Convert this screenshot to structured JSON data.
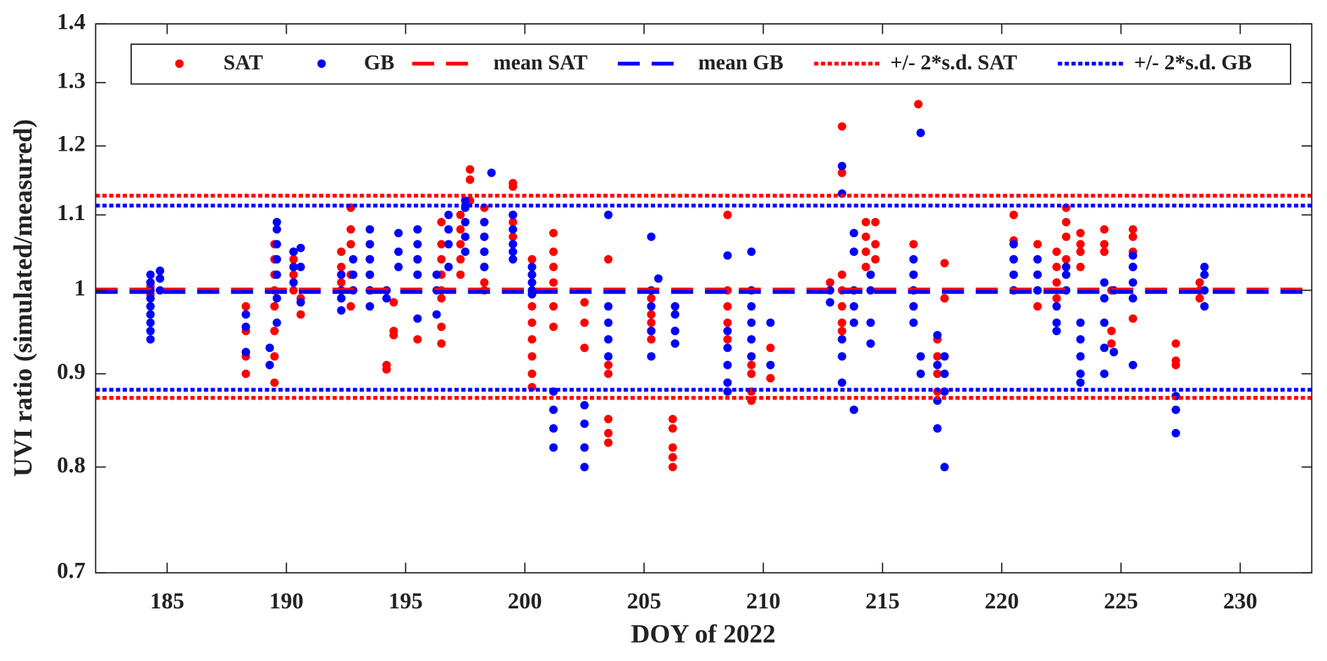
{
  "chart_data": {
    "type": "scatter",
    "xlabel": "DOY of 2022",
    "ylabel": "UVI ratio (simulated/measured)",
    "xlim": [
      182,
      233
    ],
    "xticks": [
      185,
      190,
      195,
      200,
      205,
      210,
      215,
      220,
      225,
      230
    ],
    "ylim": [
      0.7,
      1.4
    ],
    "yticks": [
      0.7,
      0.8,
      0.9,
      1,
      1.1,
      1.2,
      1.3,
      1.4
    ],
    "yscale": "log",
    "grid": false,
    "legend": "top",
    "series": [
      {
        "name": "SAT",
        "color": "#ff0000",
        "style": "marker",
        "x": [
          184.3,
          184.3,
          184.3,
          184.3,
          184.3,
          188.3,
          188.3,
          188.3,
          188.3,
          189.5,
          189.5,
          189.5,
          189.5,
          189.5,
          189.5,
          189.5,
          189.5,
          190.3,
          190.3,
          190.3,
          190.3,
          190.3,
          190.6,
          190.6,
          192.3,
          192.3,
          192.3,
          192.3,
          192.7,
          192.7,
          192.7,
          192.7,
          192.7,
          193.5,
          193.5,
          193.5,
          194.2,
          194.2,
          194.5,
          194.5,
          194.5,
          195.5,
          195.5,
          195.5,
          196.5,
          196.5,
          196.5,
          196.5,
          196.5,
          196.5,
          196.5,
          196.5,
          197.3,
          197.3,
          197.3,
          197.3,
          197.3,
          197.7,
          197.7,
          197.7,
          198.3,
          198.3,
          198.3,
          198.3,
          198.3,
          198.3,
          198.3,
          199.5,
          199.5,
          199.5,
          199.5,
          199.5,
          200.3,
          200.3,
          200.3,
          200.3,
          200.3,
          200.3,
          200.3,
          200.3,
          200.3,
          201.2,
          201.2,
          201.2,
          201.2,
          201.2,
          201.2,
          202.5,
          202.5,
          202.5,
          203.5,
          203.5,
          203.5,
          203.5,
          203.5,
          203.5,
          205.3,
          205.3,
          205.3,
          205.3,
          205.3,
          206.2,
          206.2,
          206.2,
          206.2,
          206.2,
          208.5,
          208.5,
          208.5,
          208.5,
          208.5,
          209.5,
          209.5,
          209.5,
          209.5,
          209.5,
          210.3,
          210.3,
          212.8,
          213.3,
          213.3,
          213.3,
          213.3,
          213.3,
          213.3,
          213.3,
          214.3,
          214.3,
          214.3,
          214.3,
          214.7,
          214.7,
          214.7,
          216.3,
          216.3,
          216.3,
          216.3,
          216.5,
          217.3,
          217.3,
          217.3,
          217.3,
          217.6,
          217.6,
          220.5,
          220.5,
          220.5,
          220.5,
          220.5,
          221.5,
          221.5,
          221.5,
          221.5,
          222.3,
          222.3,
          222.3,
          222.3,
          222.7,
          222.7,
          222.7,
          222.7,
          223.3,
          223.3,
          223.3,
          223.3,
          224.3,
          224.3,
          224.3,
          224.6,
          224.6,
          224.6,
          225.5,
          225.5,
          225.5,
          225.5,
          225.5,
          227.3,
          227.3,
          227.3,
          228.3,
          228.3,
          228.3
        ],
        "values": [
          0.99,
          1.0,
          1.01,
          0.995,
          1.005,
          0.98,
          0.95,
          0.92,
          0.9,
          0.89,
          0.92,
          0.95,
          0.98,
          1.0,
          1.02,
          1.04,
          1.06,
          1.0,
          1.02,
          1.04,
          1.05,
          1.03,
          0.97,
          0.99,
          0.99,
          1.01,
          1.03,
          1.05,
          1.02,
          1.06,
          1.08,
          1.11,
          0.98,
          1.0,
          1.02,
          1.04,
          0.91,
          0.905,
          0.95,
          0.945,
          0.985,
          0.94,
          1.02,
          1.04,
          0.935,
          0.955,
          0.99,
          1.0,
          1.02,
          1.04,
          1.06,
          1.09,
          1.02,
          1.04,
          1.06,
          1.08,
          1.1,
          1.12,
          1.15,
          1.165,
          1.0,
          1.01,
          1.03,
          1.05,
          1.07,
          1.09,
          1.11,
          1.07,
          1.09,
          1.1,
          1.14,
          1.145,
          0.885,
          0.9,
          0.92,
          0.94,
          0.96,
          0.98,
          1.0,
          1.02,
          1.04,
          1.075,
          1.05,
          1.03,
          1.01,
          0.98,
          0.955,
          0.985,
          0.96,
          0.93,
          0.825,
          0.835,
          0.85,
          0.9,
          0.91,
          1.04,
          0.94,
          0.95,
          0.96,
          0.97,
          0.99,
          0.8,
          0.81,
          0.82,
          0.84,
          0.85,
          0.94,
          0.96,
          0.98,
          1.0,
          1.1,
          0.87,
          0.88,
          0.9,
          0.91,
          0.92,
          0.895,
          0.93,
          1.01,
          1.23,
          1.16,
          1.02,
          1.0,
          0.98,
          0.96,
          0.95,
          1.09,
          1.07,
          1.05,
          1.03,
          1.09,
          1.06,
          1.04,
          1.0,
          0.98,
          1.02,
          1.06,
          1.265,
          0.88,
          0.9,
          0.92,
          0.94,
          1.035,
          0.99,
          1.0,
          1.02,
          1.04,
          1.065,
          1.1,
          0.98,
          1.0,
          1.02,
          1.06,
          0.99,
          1.01,
          1.03,
          1.05,
          1.11,
          1.09,
          1.07,
          1.04,
          1.03,
          1.05,
          1.06,
          1.075,
          1.08,
          1.06,
          1.05,
          1.0,
          0.95,
          0.935,
          1.08,
          1.07,
          1.05,
          1.03,
          0.965,
          0.935,
          0.915,
          0.91,
          0.99,
          1.0,
          1.01
        ]
      },
      {
        "name": "GB",
        "color": "#0000ff",
        "style": "marker",
        "x": [
          184.3,
          184.3,
          184.3,
          184.3,
          184.3,
          184.3,
          184.3,
          184.3,
          184.3,
          184.7,
          184.7,
          184.7,
          188.3,
          188.3,
          188.3,
          189.3,
          189.3,
          189.6,
          189.6,
          189.6,
          189.6,
          189.6,
          189.6,
          189.6,
          190.3,
          190.3,
          190.3,
          190.6,
          190.6,
          190.6,
          192.3,
          192.3,
          192.3,
          192.3,
          192.8,
          192.8,
          192.8,
          193.5,
          193.5,
          193.5,
          193.5,
          193.5,
          193.5,
          194.2,
          194.2,
          194.7,
          194.7,
          194.7,
          195.5,
          195.5,
          195.5,
          195.5,
          195.5,
          196.3,
          196.3,
          196.3,
          196.8,
          196.8,
          196.8,
          196.8,
          197.5,
          197.5,
          197.5,
          197.5,
          197.5,
          198.3,
          198.3,
          198.3,
          198.3,
          198.6,
          199.5,
          199.5,
          199.5,
          199.5,
          199.5,
          200.3,
          200.3,
          200.3,
          200.3,
          200.3,
          201.2,
          201.2,
          201.2,
          201.2,
          202.5,
          202.5,
          202.5,
          202.5,
          203.5,
          203.5,
          203.5,
          203.5,
          203.5,
          205.3,
          205.3,
          205.3,
          205.3,
          205.3,
          205.6,
          206.3,
          206.3,
          206.3,
          206.3,
          208.5,
          208.5,
          208.5,
          208.5,
          208.5,
          208.5,
          209.5,
          209.5,
          209.5,
          209.5,
          209.5,
          209.5,
          210.3,
          210.3,
          212.8,
          212.8,
          213.3,
          213.3,
          213.3,
          213.3,
          213.3,
          213.8,
          213.8,
          213.8,
          213.8,
          213.8,
          213.8,
          214.5,
          214.5,
          214.5,
          214.5,
          216.3,
          216.3,
          216.3,
          216.3,
          216.3,
          216.6,
          216.6,
          216.6,
          217.3,
          217.3,
          217.3,
          217.3,
          217.6,
          217.6,
          217.6,
          217.6,
          220.5,
          220.5,
          220.5,
          220.5,
          221.5,
          221.5,
          221.5,
          222.3,
          222.3,
          222.3,
          222.7,
          222.7,
          222.7,
          223.3,
          223.3,
          223.3,
          223.3,
          223.3,
          224.3,
          224.3,
          224.3,
          224.3,
          224.3,
          224.7,
          224.7,
          225.5,
          225.5,
          225.5,
          225.5,
          225.5,
          227.3,
          227.3,
          227.3,
          228.5,
          228.5,
          228.5,
          228.5
        ],
        "values": [
          0.94,
          0.95,
          0.96,
          0.97,
          0.98,
          0.99,
          1.0,
          1.01,
          1.02,
          1.0,
          1.015,
          1.025,
          0.97,
          0.955,
          0.925,
          0.93,
          0.91,
          0.96,
          0.99,
          1.02,
          1.04,
          1.06,
          1.08,
          1.09,
          1.01,
          1.03,
          1.05,
          0.985,
          1.03,
          1.055,
          0.975,
          0.99,
          1.0,
          1.02,
          1.0,
          1.02,
          1.04,
          0.98,
          1.0,
          1.02,
          1.04,
          1.06,
          1.08,
          0.99,
          1.0,
          1.03,
          1.05,
          1.075,
          0.965,
          1.02,
          1.04,
          1.06,
          1.08,
          0.97,
          1.0,
          1.02,
          1.03,
          1.06,
          1.08,
          1.1,
          1.05,
          1.07,
          1.09,
          1.11,
          1.12,
          1.03,
          1.05,
          1.07,
          1.09,
          1.16,
          1.04,
          1.05,
          1.06,
          1.08,
          1.1,
          0.995,
          1.0,
          1.01,
          1.02,
          1.03,
          0.82,
          0.84,
          0.86,
          0.88,
          0.8,
          0.82,
          0.845,
          0.865,
          0.92,
          0.94,
          0.96,
          0.98,
          1.1,
          0.92,
          0.95,
          0.98,
          1.0,
          1.07,
          1.015,
          0.935,
          0.95,
          0.97,
          0.98,
          0.88,
          0.89,
          0.91,
          0.93,
          0.95,
          1.045,
          0.92,
          0.94,
          0.96,
          0.98,
          1.0,
          1.05,
          0.91,
          0.96,
          0.985,
          1.0,
          0.89,
          0.92,
          0.94,
          1.17,
          1.13,
          0.86,
          0.96,
          0.98,
          1.0,
          1.05,
          1.075,
          0.935,
          0.96,
          1.0,
          1.02,
          0.96,
          0.98,
          1.0,
          1.02,
          1.04,
          1.22,
          0.9,
          0.92,
          0.84,
          0.87,
          0.91,
          0.945,
          0.8,
          0.88,
          0.9,
          0.92,
          1.0,
          1.02,
          1.04,
          1.06,
          1.0,
          1.02,
          1.04,
          0.95,
          0.96,
          0.98,
          1.0,
          1.02,
          1.03,
          0.89,
          0.9,
          0.92,
          0.94,
          0.96,
          0.9,
          0.93,
          0.96,
          0.99,
          1.01,
          0.925,
          1.0,
          0.91,
          0.99,
          1.01,
          1.03,
          1.045,
          0.835,
          0.86,
          0.875,
          0.98,
          1.0,
          1.02,
          1.03
        ]
      },
      {
        "name": "mean SAT",
        "color": "#ff0000",
        "style": "dashed",
        "values": [
          1.001
        ]
      },
      {
        "name": "mean GB",
        "color": "#0000ff",
        "style": "dashed",
        "values": [
          0.998
        ]
      },
      {
        "name": "+/- 2*s.d. SAT",
        "color": "#ff0000",
        "style": "dotted",
        "values": [
          1.127,
          0.873
        ]
      },
      {
        "name": "+/- 2*s.d. GB",
        "color": "#0000ff",
        "style": "dotted",
        "values": [
          1.113,
          0.882
        ]
      }
    ]
  }
}
